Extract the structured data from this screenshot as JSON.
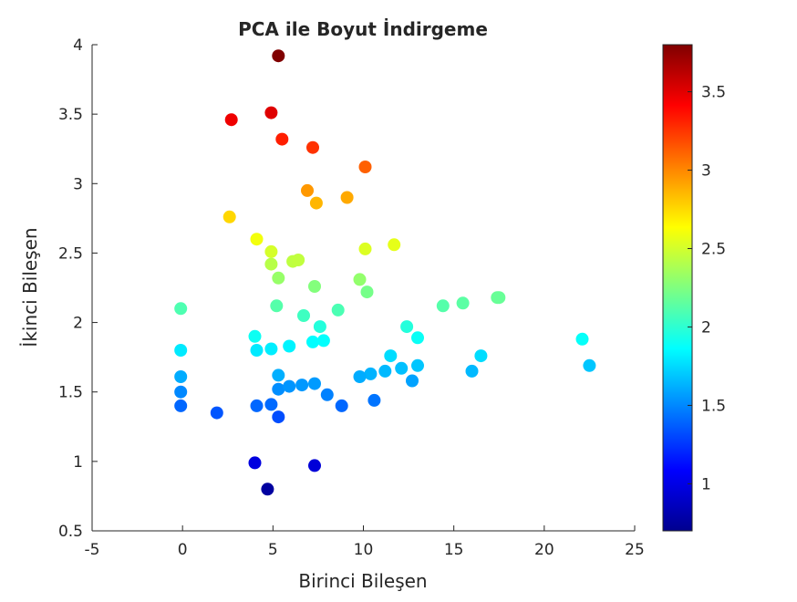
{
  "chart_data": {
    "type": "scatter",
    "title": "PCA ile Boyut İndirgeme",
    "xlabel": "Birinci Bileşen",
    "ylabel": "İkinci Bileşen",
    "xlim": [
      -5,
      25
    ],
    "ylim": [
      0.5,
      4
    ],
    "xticks": [
      "-5",
      "0",
      "5",
      "10",
      "15",
      "20",
      "25"
    ],
    "yticks": [
      "0.5",
      "1",
      "1.5",
      "2",
      "2.5",
      "3",
      "3.5",
      "4"
    ],
    "grid": false,
    "colormap": "jet",
    "colorbar": {
      "range": [
        0.7,
        3.8
      ],
      "ticks": [
        "1",
        "1.5",
        "2",
        "2.5",
        "3",
        "3.5"
      ]
    },
    "points": [
      [
        5.3,
        3.92
      ],
      [
        4.9,
        3.51
      ],
      [
        2.7,
        3.46
      ],
      [
        5.5,
        3.32
      ],
      [
        7.2,
        3.26
      ],
      [
        10.1,
        3.12
      ],
      [
        6.9,
        2.95
      ],
      [
        9.1,
        2.9
      ],
      [
        7.4,
        2.86
      ],
      [
        2.6,
        2.76
      ],
      [
        4.1,
        2.6
      ],
      [
        4.9,
        2.51
      ],
      [
        4.9,
        2.42
      ],
      [
        6.1,
        2.44
      ],
      [
        6.4,
        2.45
      ],
      [
        10.1,
        2.53
      ],
      [
        11.7,
        2.56
      ],
      [
        5.3,
        2.32
      ],
      [
        7.3,
        2.26
      ],
      [
        9.8,
        2.31
      ],
      [
        10.2,
        2.22
      ],
      [
        -0.1,
        2.1
      ],
      [
        5.2,
        2.12
      ],
      [
        6.7,
        2.05
      ],
      [
        8.6,
        2.09
      ],
      [
        14.4,
        2.12
      ],
      [
        15.5,
        2.14
      ],
      [
        17.4,
        2.18
      ],
      [
        17.5,
        2.18
      ],
      [
        12.4,
        1.97
      ],
      [
        7.6,
        1.97
      ],
      [
        7.2,
        1.86
      ],
      [
        7.8,
        1.87
      ],
      [
        4.0,
        1.9
      ],
      [
        13.0,
        1.89
      ],
      [
        -0.1,
        1.8
      ],
      [
        4.1,
        1.8
      ],
      [
        4.9,
        1.81
      ],
      [
        5.9,
        1.83
      ],
      [
        11.5,
        1.76
      ],
      [
        16.5,
        1.76
      ],
      [
        22.1,
        1.88
      ],
      [
        22.5,
        1.69
      ],
      [
        13.0,
        1.69
      ],
      [
        12.1,
        1.67
      ],
      [
        11.2,
        1.65
      ],
      [
        10.4,
        1.63
      ],
      [
        9.8,
        1.61
      ],
      [
        16.0,
        1.65
      ],
      [
        12.7,
        1.58
      ],
      [
        -0.1,
        1.61
      ],
      [
        5.3,
        1.62
      ],
      [
        -0.1,
        1.5
      ],
      [
        5.3,
        1.52
      ],
      [
        5.9,
        1.54
      ],
      [
        6.6,
        1.55
      ],
      [
        7.3,
        1.56
      ],
      [
        8.0,
        1.48
      ],
      [
        10.6,
        1.44
      ],
      [
        8.8,
        1.4
      ],
      [
        -0.1,
        1.4
      ],
      [
        4.1,
        1.4
      ],
      [
        4.9,
        1.41
      ],
      [
        1.9,
        1.35
      ],
      [
        5.3,
        1.32
      ],
      [
        4.0,
        0.99
      ],
      [
        7.3,
        0.97
      ],
      [
        4.7,
        0.8
      ]
    ]
  }
}
